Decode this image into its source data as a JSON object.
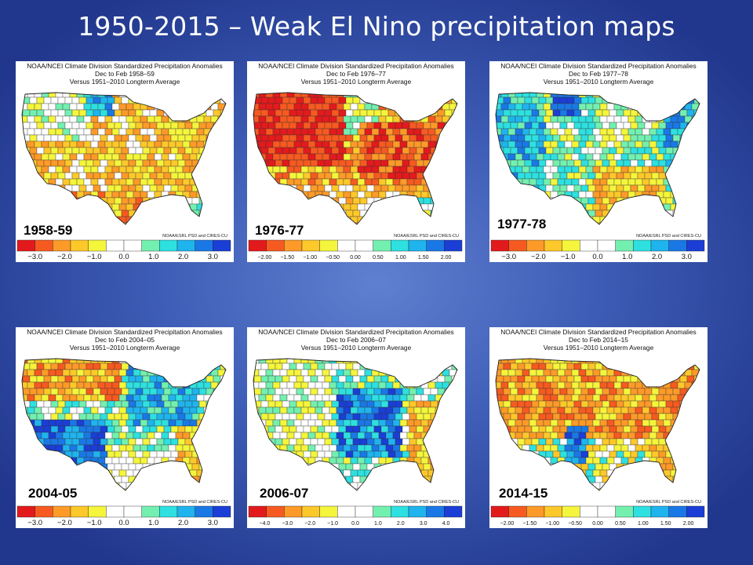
{
  "slide": {
    "title": "1950-2015 – Weak El Nino precipitation maps"
  },
  "header": {
    "line1": "NOAA/NCEI Climate Division Standardized Precipitation Anomalies",
    "line3": "Versus 1951–2010 Longterm Average",
    "credit": "NOAA/ESRL PSD and CIRES-CU"
  },
  "colors": {
    "wet": "#1c3fd6",
    "dry": "#dc1a10",
    "neutral": "#ffffff",
    "scale_sigma": [
      "#e31a1c",
      "#f65a20",
      "#fd9a28",
      "#fdc82a",
      "#f5f53c",
      "#ffffff",
      "#ffffff",
      "#73f0b0",
      "#2ee0e0",
      "#1fb4ee",
      "#1a78e6",
      "#1a3ed6"
    ]
  },
  "panels": [
    {
      "year": "1958-59",
      "period": "Dec to Feb 1958–59",
      "ticks": [
        "−3.0",
        "−2.0",
        "−1.0",
        "0.0",
        "1.0",
        "2.0",
        "3.0"
      ],
      "pattern": "dry-south"
    },
    {
      "year": "1976-77",
      "period": "Dec to Feb 1976–77",
      "ticks": [
        "−2.00",
        "−1.50",
        "−1.00",
        "−0.50",
        "0.00",
        "0.50",
        "1.00",
        "1.50",
        "2.00"
      ],
      "pattern": "very-dry"
    },
    {
      "year": "1977-78",
      "period": "Dec to Feb 1977–78",
      "ticks": [
        "−3.0",
        "−2.0",
        "−1.0",
        "0.0",
        "1.0",
        "2.0",
        "3.0"
      ],
      "pattern": "wet-west-east"
    },
    {
      "year": "2004-05",
      "period": "Dec to Feb 2004–05",
      "ticks": [
        "−3.0",
        "−2.0",
        "−1.0",
        "0.0",
        "1.0",
        "2.0",
        "3.0"
      ],
      "pattern": "wet-southwest"
    },
    {
      "year": "2006-07",
      "period": "Dec to Feb 2006–07",
      "ticks": [
        "−4.0",
        "−3.0",
        "−2.0",
        "−1.0",
        "0.0",
        "1.0",
        "2.0",
        "3.0",
        "4.0"
      ],
      "pattern": "wet-central"
    },
    {
      "year": "2014-15",
      "period": "Dec to Feb 2014–15",
      "ticks": [
        "−2.00",
        "−1.50",
        "−1.00",
        "−0.50",
        "0.00",
        "0.50",
        "1.00",
        "1.50",
        "2.00"
      ],
      "pattern": "dry-north"
    }
  ]
}
